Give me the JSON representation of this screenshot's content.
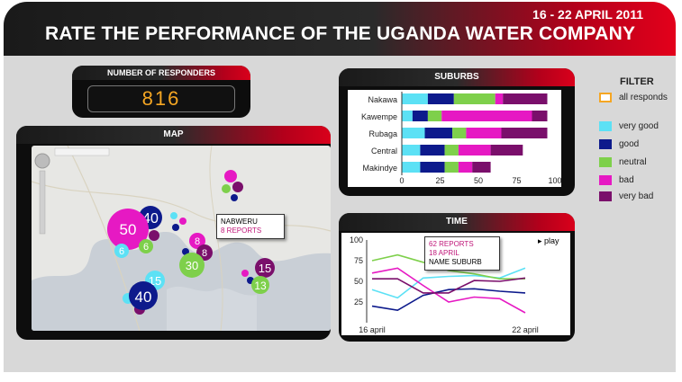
{
  "header": {
    "date": "16 - 22 APRIL 2011",
    "title": "RATE THE PERFORMANCE OF THE UGANDA WATER COMPANY"
  },
  "responders": {
    "label": "NUMBER OF RESPONDERS",
    "value": "816"
  },
  "map": {
    "title": "MAP",
    "callout": {
      "name": "NABWERU",
      "reports": "8 REPORTS"
    },
    "bubbles": [
      {
        "label": "50",
        "color": "#e619c3"
      },
      {
        "label": "40",
        "color": "#0d1a8c"
      },
      {
        "label": "6",
        "color": "#5ce1f5"
      },
      {
        "label": "6",
        "color": "#7ed04b"
      },
      {
        "label": "8",
        "color": "#e619c3"
      },
      {
        "label": "8",
        "color": "#7a0f6b"
      },
      {
        "label": "30",
        "color": "#7ed04b"
      },
      {
        "label": "15",
        "color": "#5ce1f5"
      },
      {
        "label": "40",
        "color": "#0d1a8c"
      },
      {
        "label": "15",
        "color": "#7a0f6b"
      },
      {
        "label": "13",
        "color": "#7ed04b"
      }
    ]
  },
  "suburbs": {
    "title": "SUBURBS",
    "chart_data": {
      "type": "bar",
      "orientation": "horizontal",
      "stacked": true,
      "categories": [
        "Nakawa",
        "Kawempe",
        "Rubaga",
        "Central",
        "Makindye"
      ],
      "xlim": [
        0,
        100
      ],
      "x_ticks": [
        "0",
        "25",
        "50",
        "75",
        "100"
      ],
      "series": [
        {
          "name": "very good",
          "color": "#5ce1f5",
          "values": [
            17,
            7,
            15,
            12,
            12
          ]
        },
        {
          "name": "good",
          "color": "#0d1a8c",
          "values": [
            17,
            10,
            18,
            16,
            16
          ]
        },
        {
          "name": "neutral",
          "color": "#7ed04b",
          "values": [
            27,
            9,
            9,
            9,
            9
          ]
        },
        {
          "name": "bad",
          "color": "#e619c3",
          "values": [
            5,
            59,
            23,
            21,
            9
          ]
        },
        {
          "name": "very bad",
          "color": "#7a0f6b",
          "values": [
            29,
            10,
            30,
            21,
            12
          ]
        }
      ]
    }
  },
  "filter": {
    "title": "FILTER",
    "items": [
      {
        "label": "all responds",
        "color": "#f5a623"
      },
      {
        "label": "very good",
        "color": "#5ce1f5"
      },
      {
        "label": "good",
        "color": "#0d1a8c"
      },
      {
        "label": "neutral",
        "color": "#7ed04b"
      },
      {
        "label": "bad",
        "color": "#e619c3"
      },
      {
        "label": "very bad",
        "color": "#7a0f6b"
      }
    ]
  },
  "time": {
    "title": "TIME",
    "play_label": "▸ play",
    "callout": {
      "reports": "62 REPORTS",
      "date": "18 APRIL",
      "name": "NAME SUBURB"
    },
    "chart_data": {
      "type": "line",
      "x": [
        "16 april",
        "17 april",
        "18 april",
        "19 april",
        "20 april",
        "21 april",
        "22 april"
      ],
      "x_tick_labels": [
        "16 april",
        "22 april"
      ],
      "ylim": [
        0,
        100
      ],
      "y_ticks": [
        "25",
        "50",
        "75",
        "100"
      ],
      "series": [
        {
          "name": "very good",
          "color": "#5ce1f5",
          "values": [
            40,
            30,
            54,
            56,
            57,
            54,
            66
          ]
        },
        {
          "name": "good",
          "color": "#0d1a8c",
          "values": [
            20,
            15,
            33,
            40,
            41,
            38,
            36
          ]
        },
        {
          "name": "neutral",
          "color": "#7ed04b",
          "values": [
            75,
            82,
            73,
            63,
            59,
            53,
            53
          ]
        },
        {
          "name": "bad",
          "color": "#e619c3",
          "values": [
            60,
            66,
            45,
            25,
            31,
            29,
            12
          ]
        },
        {
          "name": "very bad",
          "color": "#7a0f6b",
          "values": [
            53,
            53,
            36,
            36,
            51,
            50,
            54
          ]
        }
      ]
    }
  }
}
